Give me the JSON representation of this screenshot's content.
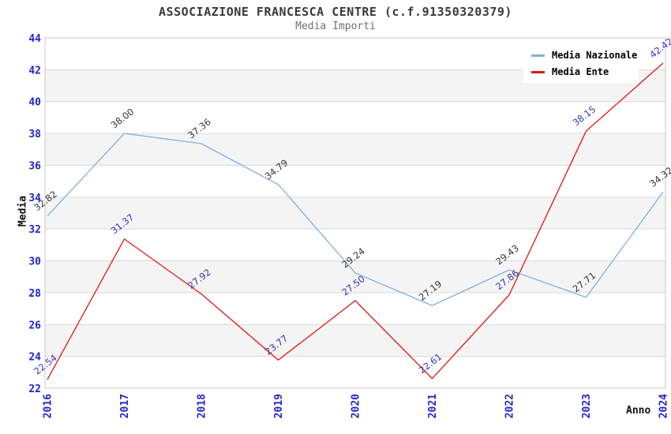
{
  "header": {
    "title": "ASSOCIAZIONE FRANCESCA CENTRE (c.f.91350320379)",
    "subtitle": "Media Importi"
  },
  "chart_data": {
    "type": "line",
    "title": "ASSOCIAZIONE FRANCESCA CENTRE (c.f.91350320379)",
    "subtitle": "Media Importi",
    "xlabel": "Anno",
    "ylabel": "Media",
    "ylim": [
      22,
      44
    ],
    "y_ticks": [
      22,
      24,
      26,
      28,
      30,
      32,
      34,
      36,
      38,
      40,
      42,
      44
    ],
    "categories": [
      "2016",
      "2017",
      "2018",
      "2019",
      "2020",
      "2021",
      "2022",
      "2023",
      "2024"
    ],
    "grid": true,
    "legend_position": "top-right",
    "series": [
      {
        "name": "Media Nazionale",
        "color": "#7eafe0",
        "label_color": "#333333",
        "values": [
          32.82,
          38.0,
          37.36,
          34.79,
          29.24,
          27.19,
          29.43,
          27.71,
          34.32
        ],
        "labels": [
          "32.82",
          "38.00",
          "37.36",
          "34.79",
          "29.24",
          "27.19",
          "29.43",
          "27.71",
          "34.32"
        ]
      },
      {
        "name": "Media Ente",
        "color": "#e41414",
        "label_color": "#3434b4",
        "values": [
          22.54,
          31.37,
          27.92,
          23.77,
          27.5,
          22.61,
          27.86,
          38.15,
          42.42
        ],
        "labels": [
          "22.54",
          "31.37",
          "27.92",
          "23.77",
          "27.50",
          "22.61",
          "27.86",
          "38.15",
          "42.42"
        ]
      }
    ],
    "colors": {
      "tick_label": "#2323cc",
      "band": "#f4f4f4",
      "grid_line": "#d9d9d9",
      "plot_border": "#c8c8c8",
      "background": "#ffffff"
    }
  }
}
